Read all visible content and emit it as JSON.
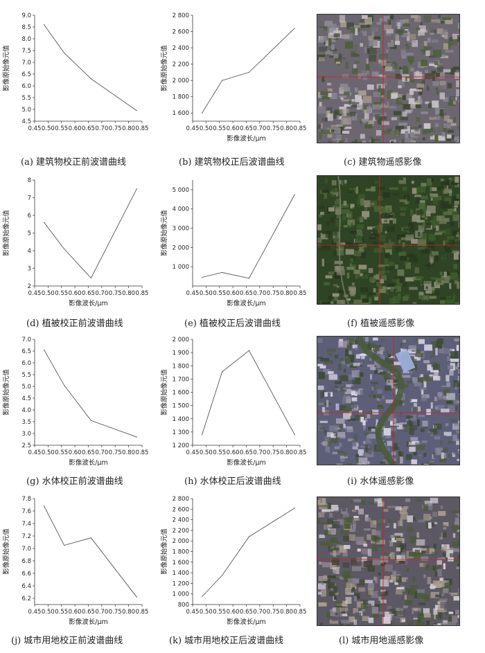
{
  "captions": {
    "a": "(a) 建筑物校正前波谱曲线",
    "b": "(b) 建筑物校正后波谱曲线",
    "c": "(c) 建筑物遥感影像",
    "d": "(d) 植被校正前波谱曲线",
    "e": "(e) 植被校正后波谱曲线",
    "f": "(f) 植被遥感影像",
    "g": "(g) 水体校正前波谱曲线",
    "h": "(h) 水体校正后波谱曲线",
    "i": "(i) 水体遥感影像",
    "j": "(j) 城市用地校正前波谱曲线",
    "k": "(k) 城市用地校正后波谱曲线",
    "l": "(l) 城市用地遥感影像"
  },
  "photos": [
    {
      "id": "c",
      "theme": "urban",
      "colors": [
        "#6b6670",
        "#8a8792",
        "#4e5f3a",
        "#a59a8c",
        "#3f4a33",
        "#c9c3c8"
      ]
    },
    {
      "id": "f",
      "theme": "vegetation",
      "colors": [
        "#2f4424",
        "#4b6338",
        "#3b5a2b",
        "#6d7a55",
        "#27361d",
        "#8f8f7a"
      ]
    },
    {
      "id": "i",
      "theme": "water",
      "colors": [
        "#5d5f78",
        "#7d7b92",
        "#3c4a32",
        "#a39fb0",
        "#4f5b40",
        "#d8d4e4"
      ]
    },
    {
      "id": "l",
      "theme": "city",
      "colors": [
        "#5c5864",
        "#86808c",
        "#4a5a35",
        "#a99d8c",
        "#3d4633",
        "#d4cfd6"
      ]
    }
  ],
  "chart_data": [
    {
      "id": "a",
      "type": "line",
      "xlabel": "",
      "ylabel": "影像原始像元值",
      "x": [
        0.485,
        0.56,
        0.66,
        0.83
      ],
      "values": [
        8.6,
        7.4,
        6.3,
        4.95
      ],
      "xlim": [
        0.45,
        0.85
      ],
      "ylim": [
        4.5,
        9.0
      ],
      "xticks": [
        "0.45",
        "0.50",
        "0.55",
        "0.60",
        "0.65",
        "0.70",
        "0.75",
        "0.80",
        "0.85"
      ],
      "yticks": [
        "4.5",
        "5.0",
        "5.5",
        "6.0",
        "6.5",
        "7.0",
        "7.5",
        "8.0",
        "8.5",
        "9.0"
      ]
    },
    {
      "id": "b",
      "type": "line",
      "xlabel": "影像波长/μm",
      "ylabel": "影像原始像元值",
      "x": [
        0.485,
        0.56,
        0.66,
        0.83
      ],
      "values": [
        1600,
        2000,
        2100,
        2640
      ],
      "xlim": [
        0.45,
        0.85
      ],
      "ylim": [
        1500,
        2800
      ],
      "xticks": [
        "0.45",
        "0.50",
        "0.55",
        "0.60",
        "0.65",
        "0.70",
        "0.75",
        "0.80",
        "0.85"
      ],
      "yticks": [
        "1 600",
        "1 800",
        "2 000",
        "2 200",
        "2 400",
        "2 600",
        "2 800"
      ]
    },
    {
      "id": "d",
      "type": "line",
      "xlabel": "影像波长/μm",
      "ylabel": "影像原始像元值",
      "x": [
        0.485,
        0.56,
        0.66,
        0.83
      ],
      "values": [
        5.6,
        4.1,
        2.45,
        7.5
      ],
      "xlim": [
        0.45,
        0.85
      ],
      "ylim": [
        2,
        8
      ],
      "xticks": [
        "0.45",
        "0.50",
        "0.55",
        "0.60",
        "0.65",
        "0.70",
        "0.75",
        "0.80",
        "0.85"
      ],
      "yticks": [
        "2",
        "3",
        "4",
        "5",
        "6",
        "7",
        "8"
      ]
    },
    {
      "id": "e",
      "type": "line",
      "xlabel": "影像波长/μm",
      "ylabel": "影像原始像元值",
      "x": [
        0.485,
        0.56,
        0.66,
        0.83
      ],
      "values": [
        450,
        700,
        400,
        4750
      ],
      "xlim": [
        0.45,
        0.85
      ],
      "ylim": [
        0,
        5500
      ],
      "xticks": [
        "0.45",
        "0.50",
        "0.55",
        "0.60",
        "0.65",
        "0.70",
        "0.75",
        "0.80",
        "0.85"
      ],
      "yticks": [
        "1 000",
        "2 000",
        "3 000",
        "4 000",
        "5 000"
      ]
    },
    {
      "id": "g",
      "type": "line",
      "xlabel": "影像波长/μm",
      "ylabel": "影像原始像元值",
      "x": [
        0.485,
        0.56,
        0.66,
        0.83
      ],
      "values": [
        6.55,
        5.05,
        3.55,
        2.85
      ],
      "xlim": [
        0.45,
        0.85
      ],
      "ylim": [
        2.5,
        7.0
      ],
      "xticks": [
        "0.45",
        "0.50",
        "0.55",
        "0.60",
        "0.65",
        "0.70",
        "0.75",
        "0.80",
        "0.85"
      ],
      "yticks": [
        "2.5",
        "3.0",
        "3.5",
        "4.0",
        "4.5",
        "5.0",
        "5.5",
        "6.0",
        "6.5",
        "7.0"
      ]
    },
    {
      "id": "h",
      "type": "line",
      "xlabel": "影像波长/μm",
      "ylabel": "影像原始像元值",
      "x": [
        0.485,
        0.56,
        0.66,
        0.83
      ],
      "values": [
        1280,
        1755,
        1915,
        1280
      ],
      "xlim": [
        0.45,
        0.85
      ],
      "ylim": [
        1200,
        2000
      ],
      "xticks": [
        "0.45",
        "0.50",
        "0.55",
        "0.60",
        "0.65",
        "0.70",
        "0.75",
        "0.80",
        "0.85"
      ],
      "yticks": [
        "1 200",
        "1 300",
        "1 400",
        "1 500",
        "1 600",
        "1 700",
        "1 800",
        "1 900",
        "2 000"
      ]
    },
    {
      "id": "j",
      "type": "line",
      "xlabel": "影像波长/μm",
      "ylabel": "影像原始像元值",
      "x": [
        0.485,
        0.56,
        0.66,
        0.83
      ],
      "values": [
        7.68,
        7.05,
        7.17,
        6.22
      ],
      "xlim": [
        0.45,
        0.85
      ],
      "ylim": [
        6.1,
        7.8
      ],
      "xticks": [
        "0.45",
        "0.50",
        "0.55",
        "0.60",
        "0.65",
        "0.70",
        "0.75",
        "0.80",
        "0.85"
      ],
      "yticks": [
        "6.2",
        "6.4",
        "6.6",
        "6.8",
        "7.0",
        "7.2",
        "7.4",
        "7.6",
        "7.8"
      ]
    },
    {
      "id": "k",
      "type": "line",
      "xlabel": "影像波长/μm",
      "ylabel": "影像原始像元值",
      "x": [
        0.485,
        0.56,
        0.66,
        0.83
      ],
      "values": [
        950,
        1350,
        2080,
        2620
      ],
      "xlim": [
        0.45,
        0.85
      ],
      "ylim": [
        800,
        2800
      ],
      "xticks": [
        "0.45",
        "0.50",
        "0.55",
        "0.60",
        "0.65",
        "0.70",
        "0.75",
        "0.80",
        "0.85"
      ],
      "yticks": [
        "800",
        "1 000",
        "1 200",
        "1 400",
        "1 600",
        "1 800",
        "2 000",
        "2 200",
        "2 400",
        "2 600",
        "2 800"
      ]
    }
  ]
}
